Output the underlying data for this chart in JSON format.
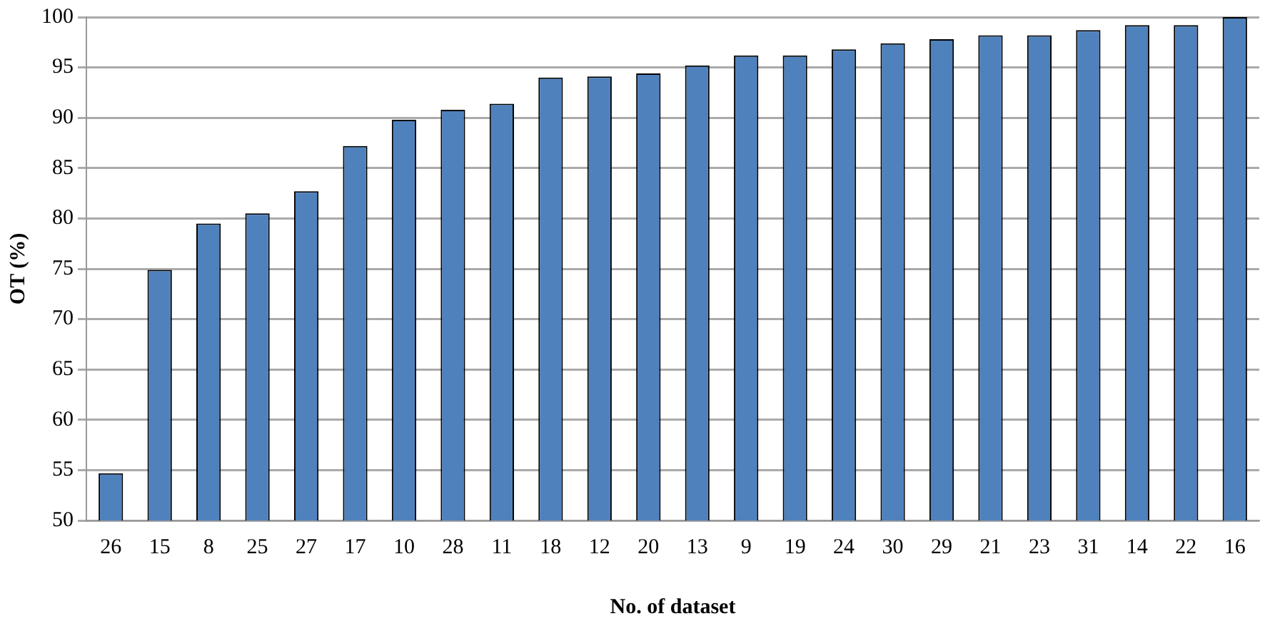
{
  "chart_data": {
    "type": "bar",
    "xlabel": "No. of dataset",
    "ylabel": "OT (%)",
    "categories": [
      "26",
      "15",
      "8",
      "25",
      "27",
      "17",
      "10",
      "28",
      "11",
      "18",
      "12",
      "20",
      "13",
      "9",
      "19",
      "24",
      "30",
      "29",
      "21",
      "23",
      "31",
      "14",
      "22",
      "16"
    ],
    "values": [
      54.7,
      74.9,
      79.5,
      80.5,
      82.7,
      87.2,
      89.8,
      90.8,
      91.4,
      94.0,
      94.1,
      94.4,
      95.2,
      96.2,
      96.2,
      96.8,
      97.4,
      97.8,
      98.2,
      98.2,
      98.7,
      99.2,
      99.2,
      100
    ],
    "color": "#4f81bd",
    "ylim": [
      50,
      100
    ],
    "yticks": [
      50,
      55,
      60,
      65,
      70,
      75,
      80,
      85,
      90,
      95,
      100
    ],
    "grid": "y",
    "legend": false
  }
}
